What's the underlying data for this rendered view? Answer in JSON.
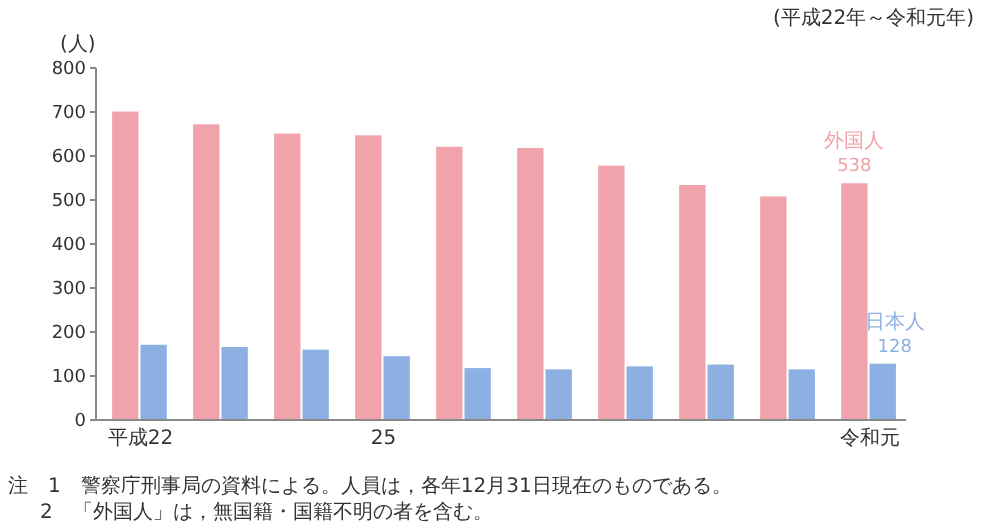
{
  "chart_data": {
    "type": "bar",
    "ylabel": "(人)",
    "categories": [
      "平成22",
      null,
      null,
      "25",
      null,
      null,
      null,
      null,
      null,
      "令和元"
    ],
    "series": [
      {
        "name": "外国人",
        "color": "#f0a3aa",
        "values": [
          701,
          672,
          651,
          647,
          621,
          618,
          578,
          534,
          508,
          538
        ],
        "value_labels": [
          null,
          null,
          null,
          null,
          null,
          null,
          null,
          null,
          null,
          "538"
        ]
      },
      {
        "name": "日本人",
        "color": "#8db0e2",
        "values": [
          171,
          166,
          160,
          145,
          118,
          115,
          122,
          126,
          115,
          128
        ],
        "value_labels": [
          null,
          null,
          null,
          null,
          null,
          null,
          null,
          null,
          null,
          "128"
        ]
      }
    ],
    "ylim": [
      0,
      800
    ],
    "yticks": [
      0,
      100,
      200,
      300,
      400,
      500,
      600,
      700,
      800
    ],
    "grid": false,
    "annotations": [
      "(平成22年～令和元年)",
      "注　1　警察庁刑事局の資料による。人員は，各年12月31日現在のものである。",
      "2　「外国人」は，無国籍・国籍不明の者を含む。"
    ]
  }
}
